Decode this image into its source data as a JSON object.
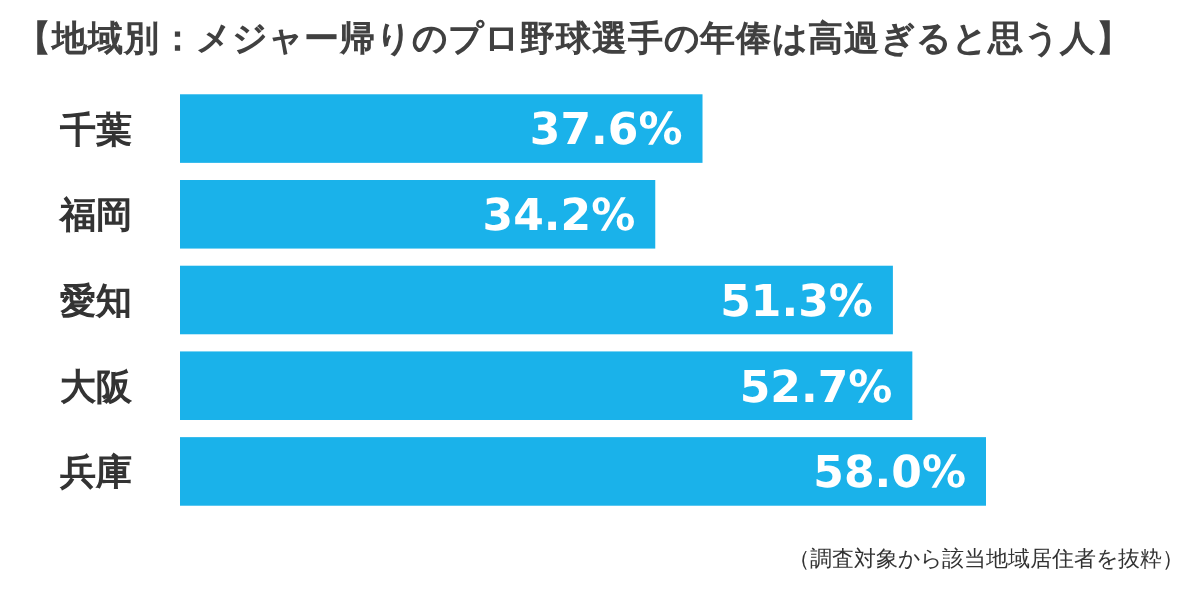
{
  "chart_data": {
    "type": "bar",
    "orientation": "horizontal",
    "title": "【地域別：メジャー帰りのプロ野球選手の年俸は高過ぎると思う人】",
    "categories": [
      "千葉",
      "福岡",
      "愛知",
      "大阪",
      "兵庫"
    ],
    "values": [
      37.6,
      34.2,
      51.3,
      52.7,
      58.0
    ],
    "value_labels": [
      "37.6%",
      "34.2%",
      "51.3%",
      "52.7%",
      "58.0%"
    ],
    "color": "#1ab2ea",
    "annotations": [
      "（調査対象から該当地域居住者を抜粋）"
    ]
  }
}
